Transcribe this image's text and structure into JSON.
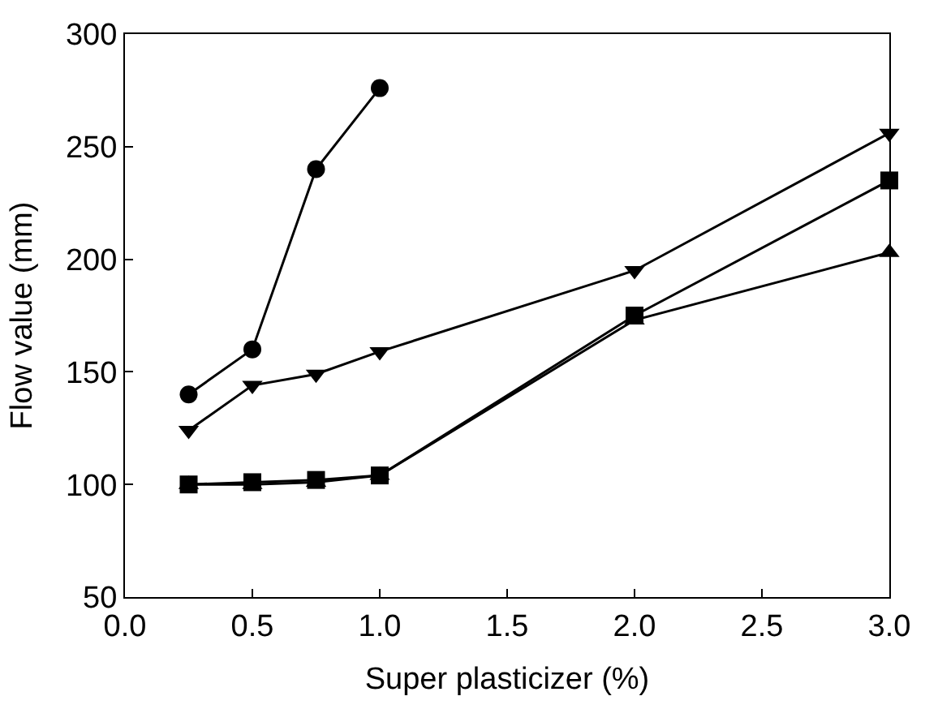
{
  "chart_data": {
    "type": "line",
    "xlabel": "Super plasticizer (%)",
    "ylabel": "Flow value (mm)",
    "xlim": [
      0.0,
      3.0
    ],
    "xticks": [
      {
        "value": 0,
        "label": "0.0"
      },
      0.5,
      {
        "value": 1,
        "label": "1.0"
      },
      1.5,
      {
        "value": 2,
        "label": "2.0"
      },
      2.5,
      {
        "value": 3,
        "label": "3.0"
      }
    ],
    "ylim": [
      50,
      300
    ],
    "yticks": [
      50,
      100,
      150,
      200,
      250,
      300
    ],
    "legend": false,
    "line_style": "solid",
    "series": [
      {
        "color": "#000000",
        "marker": "circle",
        "x": [
          0.25,
          0.5,
          0.75,
          1.0
        ],
        "values": [
          140,
          160,
          240,
          276
        ]
      },
      {
        "color": "#000000",
        "marker": "triangle-down",
        "x": [
          0.25,
          0.5,
          0.75,
          1.0,
          2.0,
          3.0
        ],
        "values": [
          124,
          144,
          149,
          159,
          195,
          256
        ]
      },
      {
        "color": "#000000",
        "marker": "square",
        "x": [
          0.25,
          0.5,
          0.75,
          1.0,
          2.0,
          3.0
        ],
        "values": [
          100,
          101,
          102,
          104,
          175,
          235
        ]
      },
      {
        "color": "#000000",
        "marker": "triangle",
        "x": [
          0.25,
          0.5,
          0.75,
          1.0,
          2.0,
          3.0
        ],
        "values": [
          100,
          100,
          101,
          104,
          173,
          203
        ]
      }
    ]
  }
}
